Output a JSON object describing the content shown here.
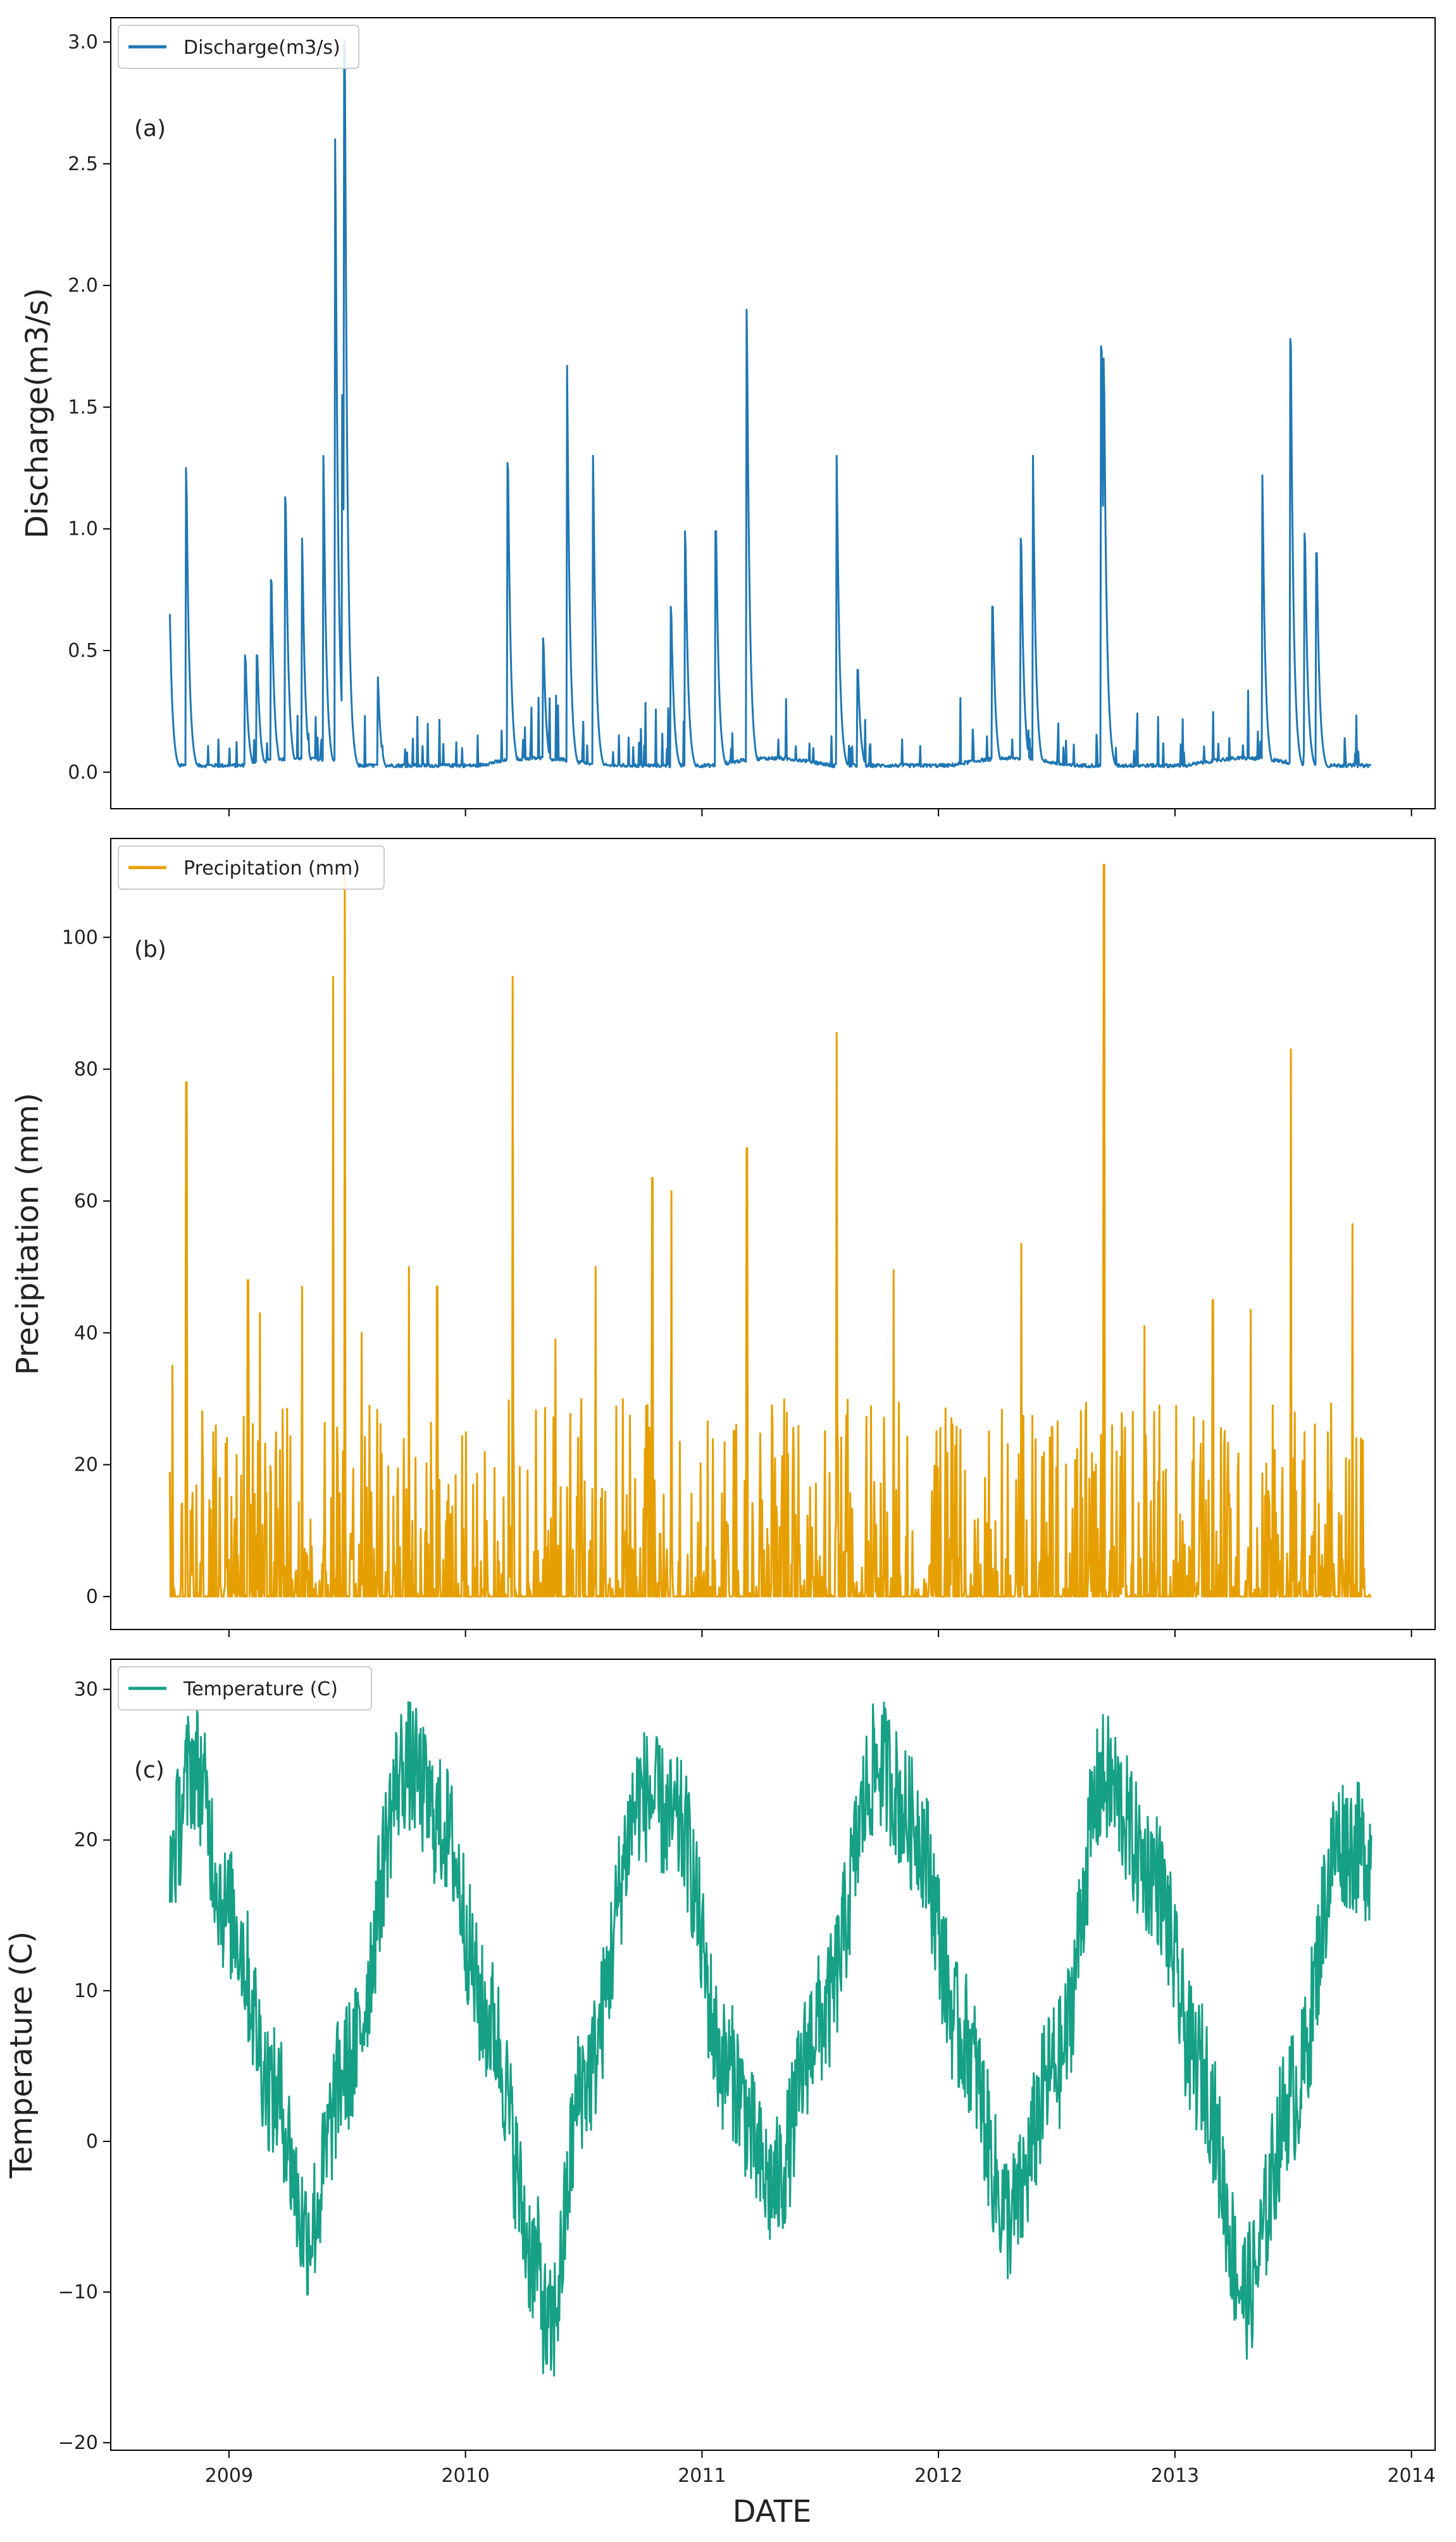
{
  "figure": {
    "xlabel": "DATE",
    "x_tick_labels": [
      "2009",
      "2010",
      "2011",
      "2012",
      "2013",
      "2014"
    ],
    "x_tick_values": [
      2009,
      2010,
      2011,
      2012,
      2013,
      2014
    ],
    "xlim": [
      2008.5,
      2014.1
    ]
  },
  "chart_data": [
    {
      "type": "line",
      "panel_tag": "(a)",
      "legend": "Discharge(m3/s)",
      "ylabel": "Discharge(m3/s)",
      "color": "#1f77b4",
      "ylim": [
        -0.15,
        3.1
      ],
      "yticks": [
        0.0,
        0.5,
        1.0,
        1.5,
        2.0,
        2.5,
        3.0
      ],
      "ytick_labels": [
        "0.0",
        "0.5",
        "1.0",
        "1.5",
        "2.0",
        "2.5",
        "3.0"
      ],
      "x_range": [
        2008.75,
        2013.83
      ],
      "series": [
        {
          "name": "Discharge(m3/s)",
          "shape": "daily flow with storm peaks",
          "baseline": 0.02,
          "peaks": [
            [
              2008.75,
              0.65
            ],
            [
              2008.82,
              1.25
            ],
            [
              2009.07,
              0.48
            ],
            [
              2009.12,
              0.48
            ],
            [
              2009.18,
              0.79
            ],
            [
              2009.24,
              1.13
            ],
            [
              2009.31,
              0.96
            ],
            [
              2009.4,
              1.3
            ],
            [
              2009.45,
              2.6
            ],
            [
              2009.48,
              1.55
            ],
            [
              2009.49,
              3.0
            ],
            [
              2009.63,
              0.39
            ],
            [
              2010.18,
              1.27
            ],
            [
              2010.33,
              0.55
            ],
            [
              2010.43,
              1.67
            ],
            [
              2010.54,
              1.3
            ],
            [
              2010.87,
              0.68
            ],
            [
              2010.93,
              0.99
            ],
            [
              2011.06,
              0.99
            ],
            [
              2011.19,
              1.9
            ],
            [
              2011.57,
              1.3
            ],
            [
              2011.66,
              0.42
            ],
            [
              2012.23,
              0.68
            ],
            [
              2012.35,
              0.96
            ],
            [
              2012.4,
              1.3
            ],
            [
              2012.69,
              1.75
            ],
            [
              2012.7,
              1.7
            ],
            [
              2013.37,
              1.22
            ],
            [
              2013.49,
              1.78
            ],
            [
              2013.55,
              0.98
            ],
            [
              2013.6,
              0.9
            ]
          ]
        }
      ]
    },
    {
      "type": "line",
      "panel_tag": "(b)",
      "legend": "Precipitation (mm)",
      "ylabel": "Precipitation (mm)",
      "color": "#e69f00",
      "ylim": [
        -5,
        115
      ],
      "yticks": [
        0,
        20,
        40,
        60,
        80,
        100
      ],
      "ytick_labels": [
        "0",
        "20",
        "40",
        "60",
        "80",
        "100"
      ],
      "x_range": [
        2008.75,
        2013.83
      ],
      "series": [
        {
          "name": "Precipitation (mm)",
          "shape": "daily rainfall spikes",
          "peaks": [
            [
              2008.76,
              35
            ],
            [
              2008.82,
              78
            ],
            [
              2009.08,
              48
            ],
            [
              2009.13,
              43
            ],
            [
              2009.31,
              47
            ],
            [
              2009.44,
              94
            ],
            [
              2009.49,
              110
            ],
            [
              2009.56,
              40
            ],
            [
              2009.76,
              50
            ],
            [
              2009.88,
              47
            ],
            [
              2010.2,
              94
            ],
            [
              2010.38,
              39
            ],
            [
              2010.55,
              50
            ],
            [
              2010.79,
              63.5
            ],
            [
              2010.87,
              61.5
            ],
            [
              2011.19,
              68
            ],
            [
              2011.57,
              85.5
            ],
            [
              2011.81,
              49.5
            ],
            [
              2012.35,
              53.5
            ],
            [
              2012.7,
              111
            ],
            [
              2012.87,
              41
            ],
            [
              2013.16,
              45
            ],
            [
              2013.32,
              43.5
            ],
            [
              2013.49,
              83
            ],
            [
              2013.75,
              56.5
            ]
          ]
        }
      ]
    },
    {
      "type": "line",
      "panel_tag": "(c)",
      "legend": "Temperature (C)",
      "ylabel": "Temperature (C)",
      "color": "#16a085",
      "ylim": [
        -20.5,
        32
      ],
      "yticks": [
        -20,
        -10,
        0,
        10,
        20,
        30
      ],
      "ytick_labels": [
        "−20",
        "−10",
        "0",
        "10",
        "20",
        "30"
      ],
      "x_range": [
        2008.75,
        2013.83
      ],
      "series": [
        {
          "name": "Temperature (C)",
          "shape": "daily temperature, seasonal cycle",
          "anchors": [
            [
              2008.75,
              19
            ],
            [
              2008.85,
              25
            ],
            [
              2009.0,
              15
            ],
            [
              2009.2,
              3
            ],
            [
              2009.33,
              -6
            ],
            [
              2009.5,
              5
            ],
            [
              2009.75,
              25
            ],
            [
              2009.9,
              21
            ],
            [
              2010.1,
              8
            ],
            [
              2010.3,
              -8
            ],
            [
              2010.35,
              -13
            ],
            [
              2010.5,
              4
            ],
            [
              2010.75,
              23
            ],
            [
              2010.9,
              21
            ],
            [
              2011.1,
              5
            ],
            [
              2011.3,
              -3
            ],
            [
              2011.5,
              8
            ],
            [
              2011.75,
              25
            ],
            [
              2011.9,
              21
            ],
            [
              2012.1,
              7
            ],
            [
              2012.3,
              -5
            ],
            [
              2012.5,
              5
            ],
            [
              2012.7,
              24
            ],
            [
              2012.9,
              18
            ],
            [
              2013.1,
              5
            ],
            [
              2013.3,
              -10
            ],
            [
              2013.5,
              3
            ],
            [
              2013.7,
              20
            ],
            [
              2013.83,
              19
            ]
          ]
        }
      ]
    }
  ]
}
